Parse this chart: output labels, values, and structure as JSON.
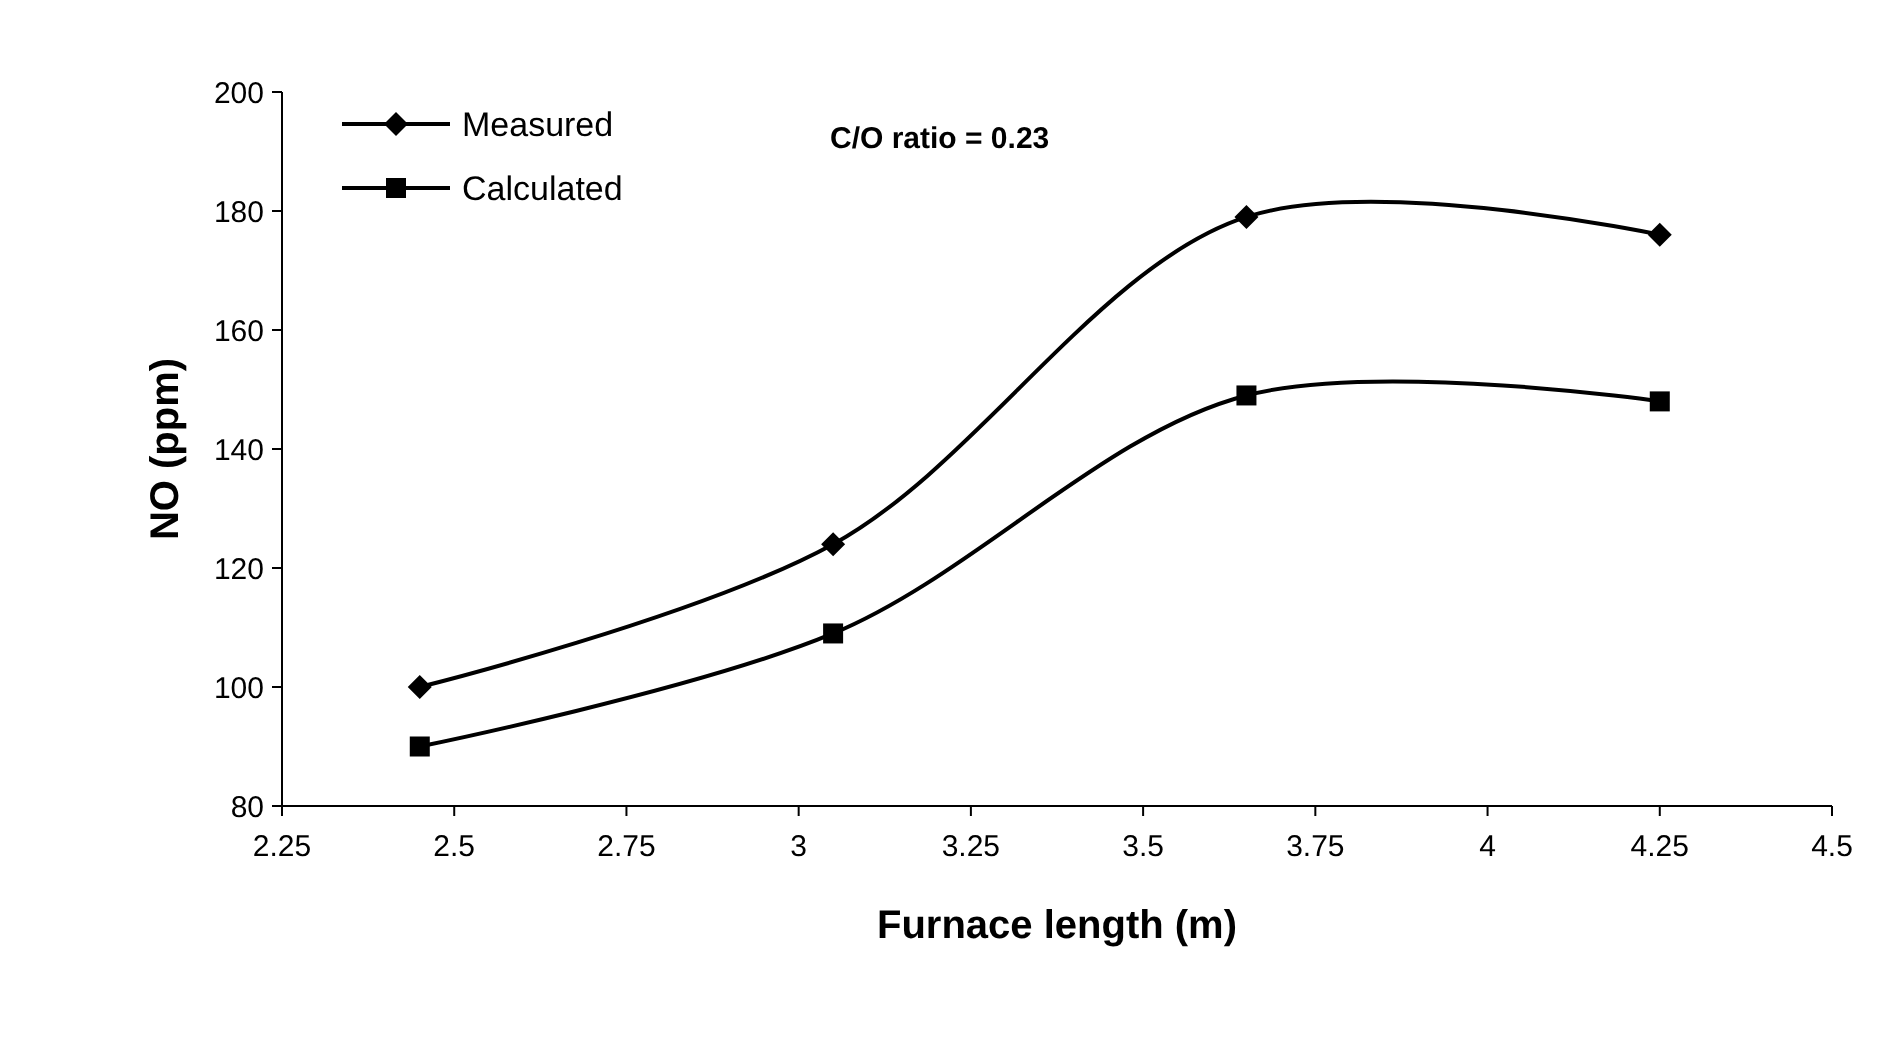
{
  "chart_data": {
    "type": "line",
    "xlabel": "Furnace length (m)",
    "ylabel": "NO (ppm)",
    "annotations": [
      "C/O ratio = 0.23"
    ],
    "x": [
      2.45,
      3.05,
      3.65,
      4.25
    ],
    "series": [
      {
        "name": "Measured",
        "color": "#000000",
        "marker": "diamond",
        "values": [
          100,
          124,
          179,
          176
        ]
      },
      {
        "name": "Calculated",
        "color": "#000000",
        "marker": "square",
        "values": [
          90,
          109,
          149,
          148
        ]
      }
    ],
    "xlim": [
      2.25,
      4.5
    ],
    "xticks": [
      2.25,
      2.5,
      2.75,
      3,
      3.25,
      3.5,
      3.75,
      4,
      4.25,
      4.5
    ],
    "ylim": [
      80,
      200
    ],
    "yticks": [
      80,
      100,
      120,
      140,
      160,
      180,
      200
    ],
    "grid": false,
    "legend": "top left",
    "line_style": "solid"
  }
}
